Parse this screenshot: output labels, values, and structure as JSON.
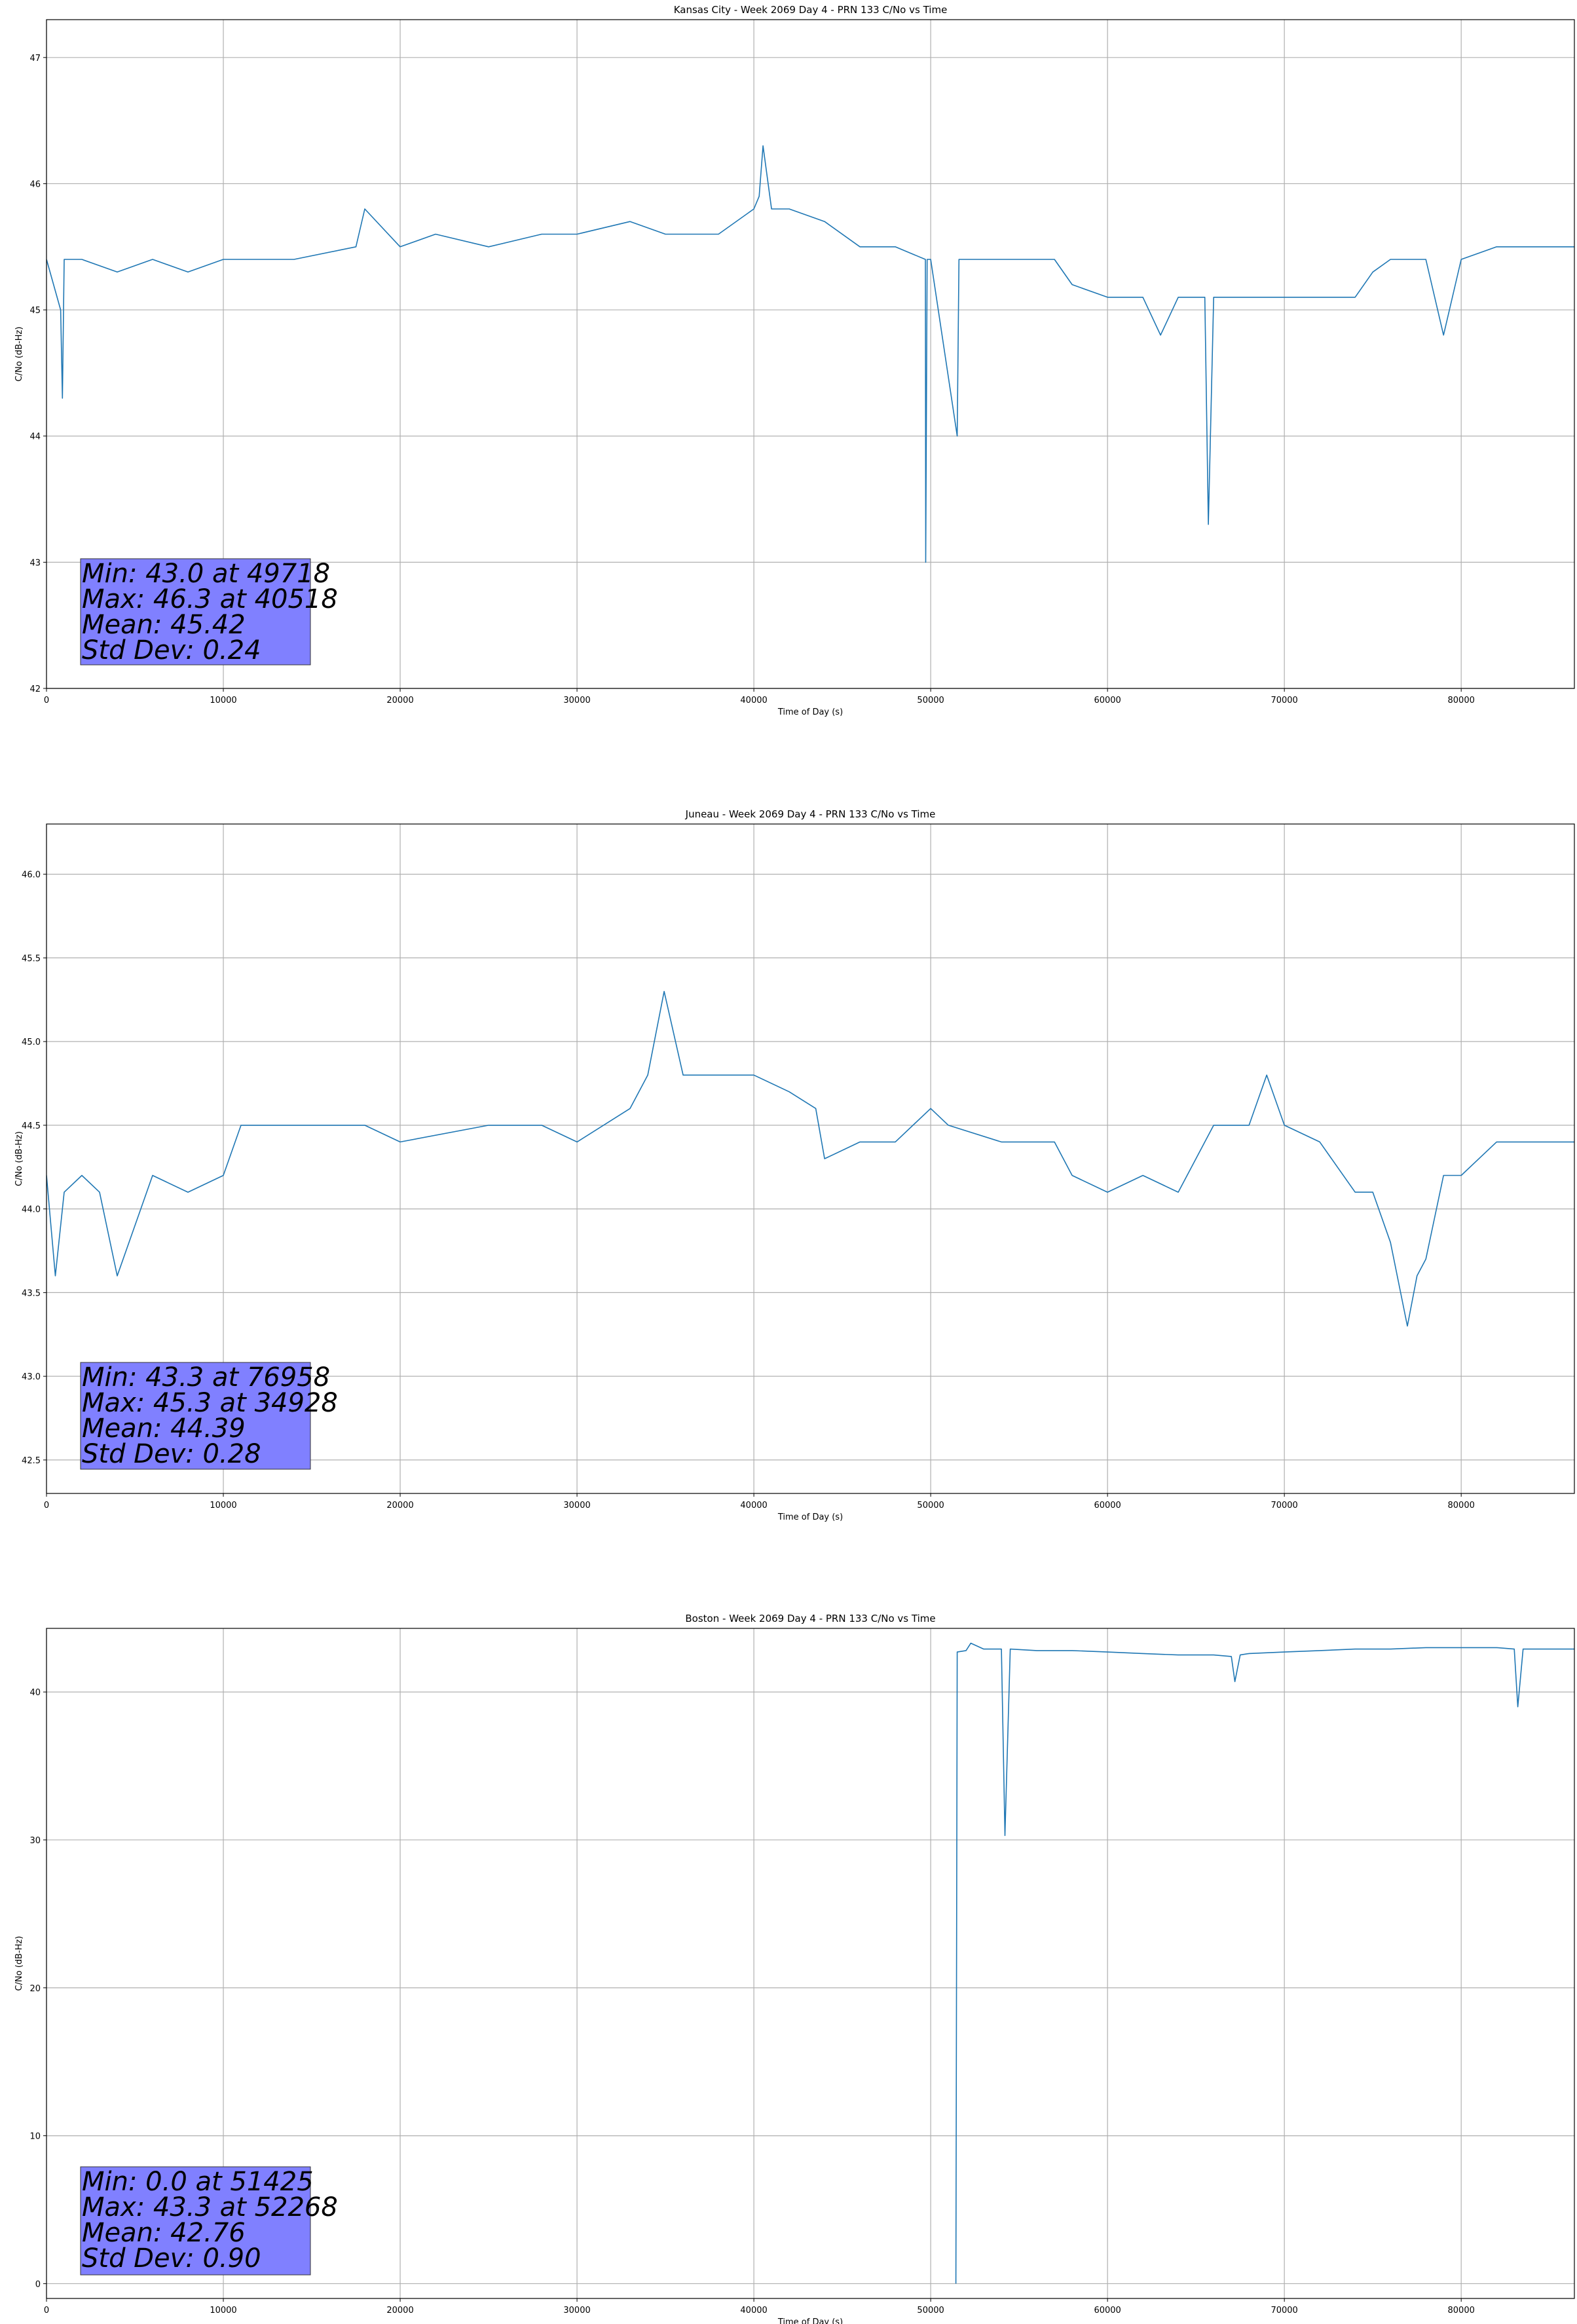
{
  "chart_data": [
    {
      "type": "line",
      "title": "Kansas City - Week 2069 Day 4 - PRN 133 C/No vs Time",
      "xlabel": "Time of Day (s)",
      "ylabel": "C/No (dB-Hz)",
      "xlim": [
        0,
        86400
      ],
      "ylim": [
        42,
        47.3
      ],
      "xticks": [
        0,
        10000,
        20000,
        30000,
        40000,
        50000,
        60000,
        70000,
        80000
      ],
      "yticks": [
        42,
        43,
        44,
        45,
        46,
        47
      ],
      "grid": true,
      "series": [
        {
          "color": "#1f77b4",
          "x": [
            0,
            800,
            900,
            1000,
            2000,
            4000,
            6000,
            8000,
            10000,
            14000,
            17500,
            18000,
            20000,
            22000,
            25000,
            28000,
            30000,
            33000,
            35000,
            38000,
            40000,
            40300,
            40518,
            41000,
            42000,
            44000,
            46000,
            48000,
            49700,
            49718,
            49800,
            50000,
            51500,
            51600,
            52000,
            55000,
            57000,
            58000,
            60000,
            62000,
            63000,
            64000,
            65500,
            65700,
            66000,
            68000,
            70000,
            72000,
            74000,
            75000,
            76000,
            78000,
            79000,
            80000,
            82000,
            84000,
            86400
          ],
          "y": [
            45.4,
            45.0,
            44.3,
            45.4,
            45.4,
            45.3,
            45.4,
            45.3,
            45.4,
            45.4,
            45.5,
            45.8,
            45.5,
            45.6,
            45.5,
            45.6,
            45.6,
            45.7,
            45.6,
            45.6,
            45.8,
            45.9,
            46.3,
            45.8,
            45.8,
            45.7,
            45.5,
            45.5,
            45.4,
            43.0,
            45.4,
            45.4,
            44.0,
            45.4,
            45.4,
            45.4,
            45.4,
            45.2,
            45.1,
            45.1,
            44.8,
            45.1,
            45.1,
            43.3,
            45.1,
            45.1,
            45.1,
            45.1,
            45.1,
            45.3,
            45.4,
            45.4,
            44.8,
            45.4,
            45.5,
            45.5,
            45.5
          ]
        }
      ],
      "stats": {
        "line1": "Min: 43.0 at 49718",
        "line2": "Max: 46.3 at 40518",
        "line3": "Mean: 45.42",
        "line4": "Std Dev: 0.24"
      }
    },
    {
      "type": "line",
      "title": "Juneau - Week 2069 Day 4 - PRN 133 C/No vs Time",
      "xlabel": "Time of Day (s)",
      "ylabel": "C/No (dB-Hz)",
      "xlim": [
        0,
        86400
      ],
      "ylim": [
        42.3,
        46.3
      ],
      "xticks": [
        0,
        10000,
        20000,
        30000,
        40000,
        50000,
        60000,
        70000,
        80000
      ],
      "yticks": [
        42.5,
        43.0,
        43.5,
        44.0,
        44.5,
        45.0,
        45.5,
        46.0
      ],
      "ytick_labels": [
        "42.5",
        "43.0",
        "43.5",
        "44.0",
        "44.5",
        "45.0",
        "45.5",
        "46.0"
      ],
      "grid": true,
      "series": [
        {
          "color": "#1f77b4",
          "x": [
            0,
            500,
            1000,
            2000,
            3000,
            4000,
            6000,
            8000,
            10000,
            11000,
            13000,
            15000,
            18000,
            20000,
            25000,
            28000,
            30000,
            33000,
            34000,
            34928,
            36000,
            38000,
            40000,
            42000,
            43500,
            44000,
            46000,
            48000,
            50000,
            51000,
            54000,
            57000,
            58000,
            60000,
            62000,
            64000,
            66000,
            68000,
            69000,
            70000,
            72000,
            74000,
            75000,
            76000,
            76958,
            77500,
            78000,
            79000,
            80000,
            82000,
            84000,
            86400
          ],
          "y": [
            44.2,
            43.6,
            44.1,
            44.2,
            44.1,
            43.6,
            44.2,
            44.1,
            44.2,
            44.5,
            44.5,
            44.5,
            44.5,
            44.4,
            44.5,
            44.5,
            44.4,
            44.6,
            44.8,
            45.3,
            44.8,
            44.8,
            44.8,
            44.7,
            44.6,
            44.3,
            44.4,
            44.4,
            44.6,
            44.5,
            44.4,
            44.4,
            44.2,
            44.1,
            44.2,
            44.1,
            44.5,
            44.5,
            44.8,
            44.5,
            44.4,
            44.1,
            44.1,
            43.8,
            43.3,
            43.6,
            43.7,
            44.2,
            44.2,
            44.4,
            44.4,
            44.4
          ]
        }
      ],
      "stats": {
        "line1": "Min: 43.3 at 76958",
        "line2": "Max: 45.3 at 34928",
        "line3": "Mean: 44.39",
        "line4": "Std Dev: 0.28"
      }
    },
    {
      "type": "line",
      "title": "Boston - Week 2069 Day 4 - PRN 133 C/No vs Time",
      "xlabel": "Time of Day (s)",
      "ylabel": "C/No (dB-Hz)",
      "xlim": [
        0,
        86400
      ],
      "ylim": [
        -1,
        44.3
      ],
      "xticks": [
        0,
        10000,
        20000,
        30000,
        40000,
        50000,
        60000,
        70000,
        80000
      ],
      "yticks": [
        0,
        10,
        20,
        30,
        40
      ],
      "grid": true,
      "series": [
        {
          "color": "#1f77b4",
          "x": [
            51425,
            51500,
            52000,
            52268,
            53000,
            54000,
            54200,
            54500,
            56000,
            58000,
            60000,
            62000,
            64000,
            66000,
            67000,
            67200,
            67500,
            68000,
            70000,
            72000,
            74000,
            76000,
            78000,
            80000,
            82000,
            83000,
            83200,
            83500,
            84000,
            86400
          ],
          "y": [
            0.0,
            42.7,
            42.8,
            43.3,
            42.9,
            42.9,
            30.3,
            42.9,
            42.8,
            42.8,
            42.7,
            42.6,
            42.5,
            42.5,
            42.4,
            40.7,
            42.5,
            42.6,
            42.7,
            42.8,
            42.9,
            42.9,
            43.0,
            43.0,
            43.0,
            42.9,
            39.0,
            42.9,
            42.9,
            42.9
          ]
        }
      ],
      "stats": {
        "line1": "Min: 0.0 at 51425",
        "line2": "Max: 43.3 at 52268",
        "line3": "Mean: 42.76",
        "line4": "Std Dev: 0.90"
      }
    }
  ]
}
